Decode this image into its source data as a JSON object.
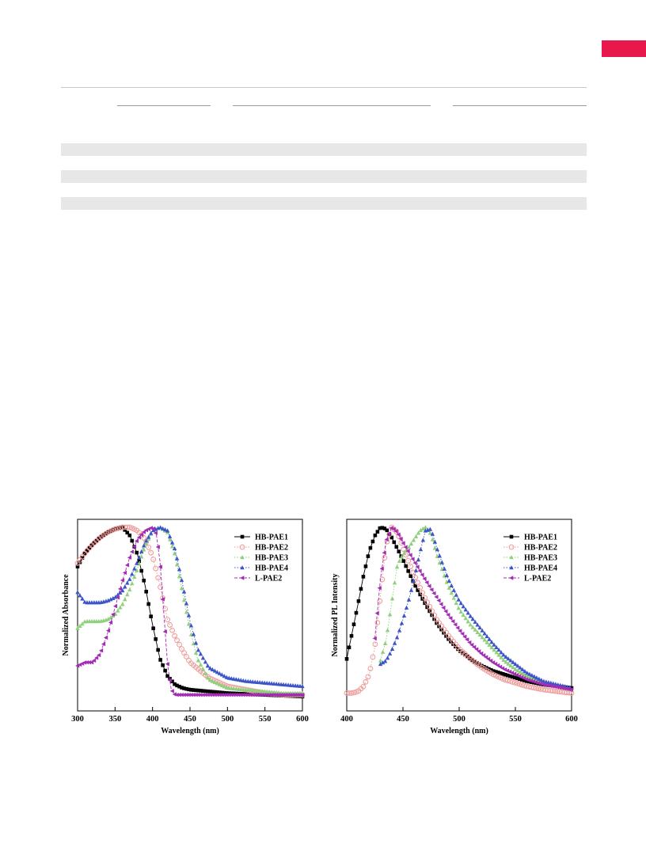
{
  "colors": {
    "accent_tab": "#e8174c",
    "rule": "#c8c8c8",
    "band": "#e7e7e7",
    "series": {
      "HB-PAE1": "#000000",
      "HB-PAE2": "#ee9a9a",
      "HB-PAE3": "#8fd07c",
      "HB-PAE4": "#3b55c9",
      "L-PAE2": "#a22cb3"
    }
  },
  "chart_data": [
    {
      "type": "scatter",
      "title": "",
      "xlabel": "Wavelength (nm)",
      "ylabel": "Normalized Absorbance",
      "xlim": [
        300,
        600
      ],
      "ylim": [
        0,
        1
      ],
      "xticks": [
        300,
        350,
        400,
        450,
        500,
        550,
        600
      ],
      "grid": false,
      "legend_position": "top-right",
      "series": [
        {
          "name": "HB-PAE1",
          "marker": "square",
          "line": "solid",
          "x": [
            300,
            310,
            320,
            330,
            340,
            350,
            360,
            370,
            380,
            390,
            400,
            410,
            420,
            430,
            440,
            450,
            475,
            500,
            525,
            550,
            575,
            600
          ],
          "y": [
            0.77,
            0.85,
            0.9,
            0.94,
            0.97,
            0.99,
            1.0,
            0.95,
            0.84,
            0.66,
            0.43,
            0.23,
            0.13,
            0.08,
            0.06,
            0.05,
            0.04,
            0.03,
            0.025,
            0.02,
            0.015,
            0.01
          ]
        },
        {
          "name": "HB-PAE2",
          "marker": "circle-open",
          "line": "dotted",
          "x": [
            300,
            310,
            320,
            330,
            340,
            350,
            360,
            370,
            380,
            390,
            400,
            410,
            420,
            430,
            440,
            450,
            475,
            500,
            525,
            550,
            575,
            600
          ],
          "y": [
            0.79,
            0.85,
            0.9,
            0.94,
            0.97,
            0.99,
            1.0,
            1.0,
            0.98,
            0.93,
            0.83,
            0.66,
            0.46,
            0.36,
            0.28,
            0.21,
            0.12,
            0.07,
            0.05,
            0.03,
            0.02,
            0.02
          ]
        },
        {
          "name": "HB-PAE3",
          "marker": "triangle-up",
          "line": "dotted",
          "x": [
            300,
            310,
            320,
            330,
            340,
            350,
            360,
            370,
            380,
            390,
            400,
            410,
            420,
            430,
            440,
            450,
            460,
            475,
            500,
            525,
            550,
            575,
            600
          ],
          "y": [
            0.41,
            0.45,
            0.45,
            0.45,
            0.46,
            0.49,
            0.55,
            0.64,
            0.76,
            0.89,
            0.98,
            1.0,
            0.97,
            0.84,
            0.62,
            0.4,
            0.23,
            0.11,
            0.06,
            0.05,
            0.04,
            0.03,
            0.03
          ]
        },
        {
          "name": "HB-PAE4",
          "marker": "triangle-up",
          "line": "dotted",
          "x": [
            300,
            310,
            320,
            330,
            340,
            350,
            360,
            370,
            380,
            390,
            400,
            410,
            420,
            430,
            440,
            450,
            460,
            475,
            500,
            525,
            550,
            575,
            600
          ],
          "y": [
            0.62,
            0.56,
            0.56,
            0.56,
            0.57,
            0.59,
            0.63,
            0.7,
            0.8,
            0.91,
            0.98,
            1.0,
            0.98,
            0.87,
            0.67,
            0.45,
            0.29,
            0.18,
            0.12,
            0.1,
            0.09,
            0.08,
            0.07
          ]
        },
        {
          "name": "L-PAE2",
          "marker": "triangle-left",
          "line": "dashed",
          "x": [
            300,
            310,
            320,
            330,
            340,
            350,
            360,
            370,
            380,
            390,
            400,
            405,
            410,
            415,
            420,
            425,
            430,
            450,
            500,
            550,
            600
          ],
          "y": [
            0.19,
            0.21,
            0.21,
            0.26,
            0.38,
            0.53,
            0.69,
            0.83,
            0.93,
            0.98,
            1.0,
            0.96,
            0.8,
            0.5,
            0.2,
            0.05,
            0.02,
            0.02,
            0.02,
            0.02,
            0.02
          ]
        }
      ]
    },
    {
      "type": "scatter",
      "title": "",
      "xlabel": "Wavelength (nm)",
      "ylabel": "Normalized PL Intensity",
      "xlim": [
        400,
        600
      ],
      "ylim": [
        0,
        1
      ],
      "xticks": [
        400,
        450,
        500,
        550,
        600
      ],
      "grid": false,
      "legend_position": "top-right",
      "series": [
        {
          "name": "HB-PAE1",
          "marker": "square",
          "line": "solid",
          "x": [
            400,
            405,
            410,
            415,
            420,
            425,
            430,
            435,
            440,
            450,
            460,
            470,
            480,
            490,
            500,
            510,
            520,
            530,
            540,
            550,
            560,
            575,
            600
          ],
          "y": [
            0.23,
            0.39,
            0.55,
            0.72,
            0.86,
            0.95,
            1.0,
            0.99,
            0.94,
            0.81,
            0.67,
            0.55,
            0.44,
            0.35,
            0.28,
            0.23,
            0.19,
            0.16,
            0.14,
            0.12,
            0.1,
            0.08,
            0.06
          ]
        },
        {
          "name": "HB-PAE2",
          "marker": "circle-open",
          "line": "dotted",
          "x": [
            400,
            405,
            410,
            415,
            420,
            425,
            430,
            435,
            440,
            445,
            450,
            460,
            470,
            480,
            490,
            500,
            510,
            520,
            530,
            540,
            550,
            560,
            575,
            600
          ],
          "y": [
            0.03,
            0.03,
            0.04,
            0.07,
            0.14,
            0.3,
            0.6,
            0.9,
            1.0,
            0.97,
            0.88,
            0.72,
            0.58,
            0.46,
            0.37,
            0.29,
            0.23,
            0.18,
            0.14,
            0.11,
            0.09,
            0.07,
            0.05,
            0.03
          ]
        },
        {
          "name": "HB-PAE3",
          "marker": "triangle-up",
          "line": "dotted",
          "x": [
            430,
            435,
            440,
            445,
            450,
            455,
            460,
            465,
            470,
            475,
            480,
            490,
            500,
            510,
            520,
            530,
            540,
            550,
            560,
            575,
            600
          ],
          "y": [
            0.22,
            0.34,
            0.56,
            0.78,
            0.84,
            0.88,
            0.93,
            0.98,
            1.0,
            0.96,
            0.84,
            0.66,
            0.52,
            0.43,
            0.36,
            0.29,
            0.22,
            0.17,
            0.13,
            0.09,
            0.05
          ]
        },
        {
          "name": "HB-PAE4",
          "marker": "triangle-up",
          "line": "dotted",
          "x": [
            430,
            435,
            440,
            445,
            450,
            455,
            460,
            465,
            470,
            475,
            480,
            490,
            500,
            510,
            520,
            530,
            540,
            550,
            560,
            575,
            600
          ],
          "y": [
            0.2,
            0.22,
            0.28,
            0.36,
            0.46,
            0.57,
            0.7,
            0.85,
            0.98,
            0.99,
            0.88,
            0.7,
            0.57,
            0.48,
            0.4,
            0.32,
            0.25,
            0.2,
            0.15,
            0.1,
            0.06
          ]
        },
        {
          "name": "L-PAE2",
          "marker": "triangle-left",
          "line": "dashed",
          "x": [
            425,
            430,
            435,
            440,
            445,
            450,
            460,
            470,
            480,
            490,
            500,
            510,
            520,
            530,
            540,
            550,
            560,
            575,
            600
          ],
          "y": [
            0.35,
            0.7,
            0.92,
            1.0,
            0.97,
            0.91,
            0.8,
            0.69,
            0.59,
            0.49,
            0.4,
            0.32,
            0.26,
            0.21,
            0.17,
            0.14,
            0.11,
            0.08,
            0.05
          ]
        }
      ]
    }
  ]
}
